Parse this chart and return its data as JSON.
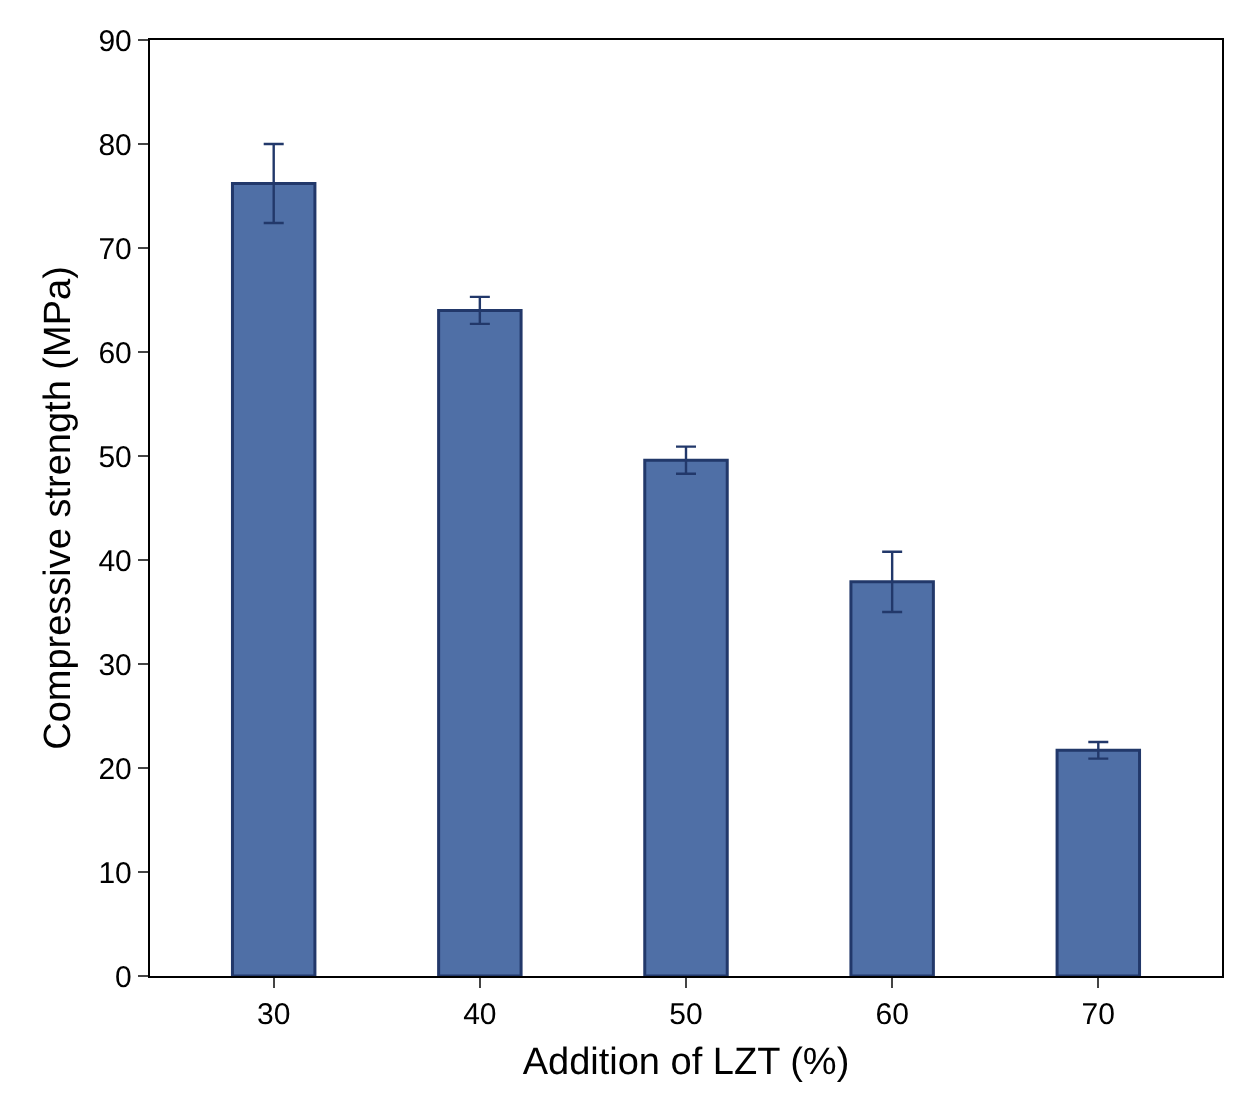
{
  "chart_data": {
    "type": "bar",
    "xlabel": "Addition of LZT (%)",
    "ylabel": "Compressive strength (MPa)",
    "categories": [
      "30",
      "40",
      "50",
      "60",
      "70"
    ],
    "values": [
      76.2,
      64.0,
      49.6,
      37.9,
      21.7
    ],
    "errors": [
      3.8,
      1.3,
      1.3,
      2.9,
      0.8
    ],
    "color": "#4f6fa6",
    "ylim": [
      0,
      90
    ],
    "yticks": [
      0,
      10,
      20,
      30,
      40,
      50,
      60,
      70,
      80,
      90
    ]
  }
}
